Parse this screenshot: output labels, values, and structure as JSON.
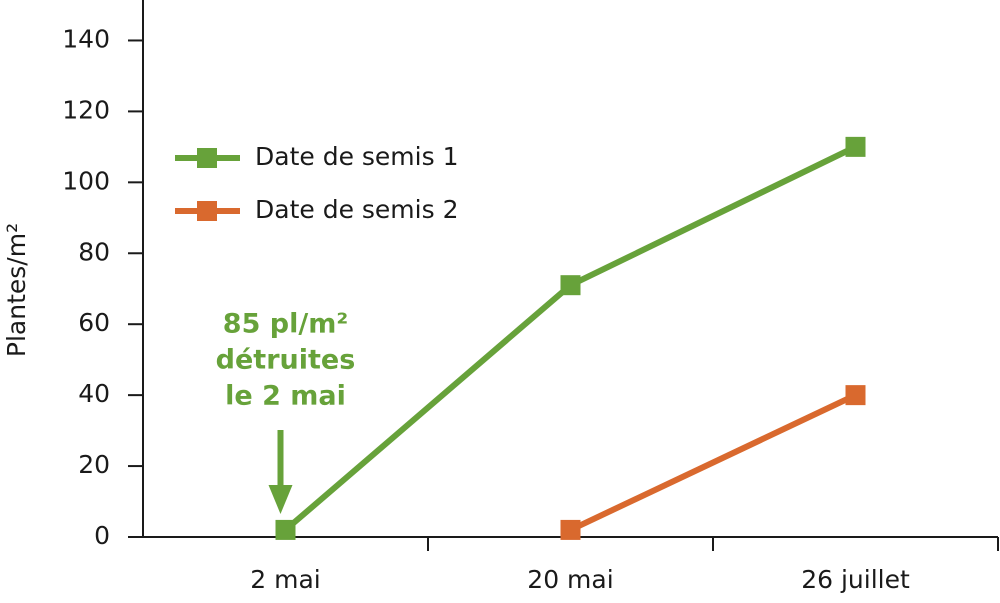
{
  "chart_data": {
    "type": "line",
    "y_label": "Plantes/m²",
    "categories": [
      "2 mai",
      "20 mai",
      "26 juillet"
    ],
    "series": [
      {
        "name": "Date de semis 1",
        "color": "#67a23a",
        "values": [
          2,
          71,
          110
        ]
      },
      {
        "name": "Date de semis 2",
        "color": "#d9692e",
        "values": [
          null,
          2,
          40
        ]
      }
    ],
    "ylim": [
      0,
      150
    ],
    "yticks": [
      0,
      20,
      40,
      60,
      80,
      100,
      120,
      140
    ],
    "legend": "upper left",
    "annotation": {
      "lines": [
        "85 pl/m²",
        "détruites",
        "le 2 mai"
      ],
      "color": "#67a23a"
    }
  }
}
